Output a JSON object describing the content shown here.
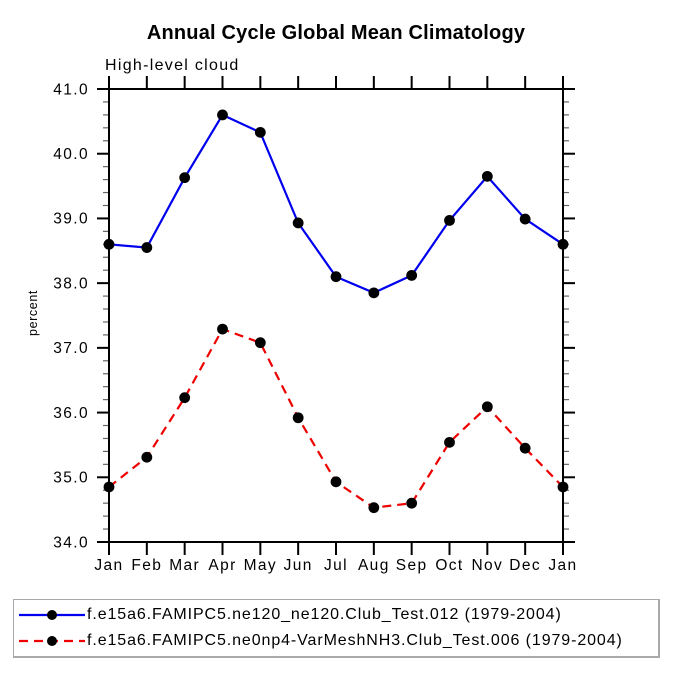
{
  "page": {
    "background": "#ffffff",
    "axis_color": "#000000"
  },
  "chart_data": {
    "type": "line",
    "title": "Annual Cycle Global Mean Climatology",
    "subtitle": "High-level cloud",
    "ylabel": "percent",
    "xlabel": "",
    "categories": [
      "Jan",
      "Feb",
      "Mar",
      "Apr",
      "May",
      "Jun",
      "Jul",
      "Aug",
      "Sep",
      "Oct",
      "Nov",
      "Dec",
      "Jan"
    ],
    "series": [
      {
        "name": "f.e15a6.FAMIPC5.ne120_ne120.Club_Test.012 (1979-2004)",
        "color": "#0000ee",
        "line_style": "solid",
        "marker": "filled-circle",
        "marker_color": "#000000",
        "values": [
          38.6,
          38.55,
          39.63,
          40.6,
          40.33,
          38.93,
          38.1,
          37.85,
          38.12,
          38.97,
          39.65,
          38.99,
          38.6
        ]
      },
      {
        "name": "f.e15a6.FAMIPC5.ne0np4-VarMeshNH3.Club_Test.006 (1979-2004)",
        "color": "#ee0000",
        "line_style": "dashed",
        "marker": "filled-circle",
        "marker_color": "#000000",
        "values": [
          34.85,
          35.31,
          36.23,
          37.29,
          37.08,
          35.92,
          34.93,
          34.53,
          34.6,
          35.54,
          36.09,
          35.45,
          34.85
        ]
      }
    ],
    "ylim": [
      34.0,
      41.0
    ],
    "ytick_major_step": 1.0,
    "ytick_minor_step": 0.2,
    "ytick_labels": [
      "34.0",
      "35.0",
      "36.0",
      "37.0",
      "38.0",
      "39.0",
      "40.0",
      "41.0"
    ],
    "grid": false,
    "legend_position": "bottom"
  }
}
